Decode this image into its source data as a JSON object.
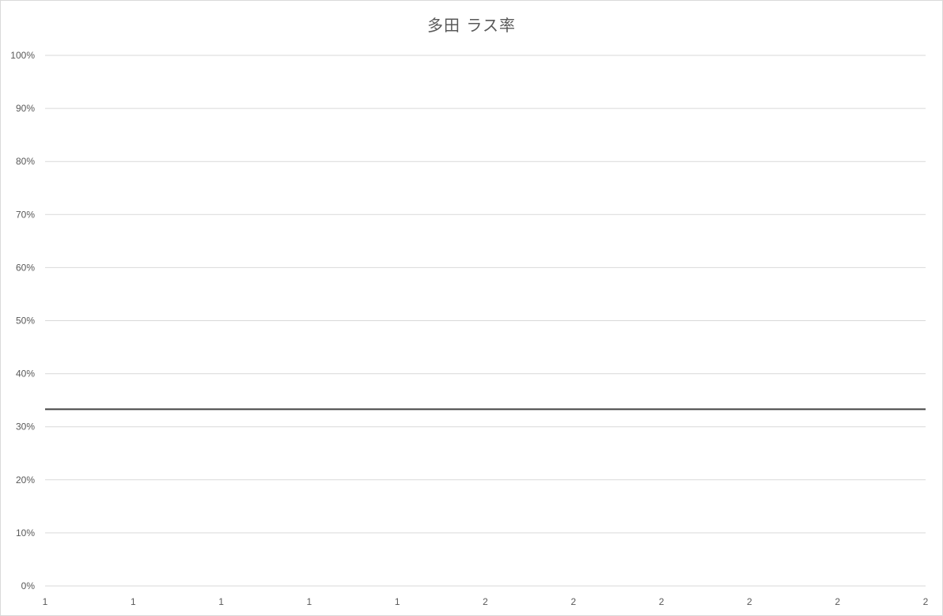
{
  "chart_data": {
    "type": "line",
    "title": "多田 ラス率",
    "xlabel": "",
    "ylabel": "",
    "y_ticks": [
      "0%",
      "10%",
      "20%",
      "30%",
      "40%",
      "50%",
      "60%",
      "70%",
      "80%",
      "90%",
      "100%"
    ],
    "ylim": [
      0,
      1
    ],
    "x_ticks": [
      "1",
      "1",
      "1",
      "1",
      "1",
      "2",
      "2",
      "2",
      "2",
      "2",
      "2"
    ],
    "grid": true,
    "legend": "none",
    "series": [
      {
        "values": [
          0.333,
          0.333
        ],
        "color": "#404040"
      }
    ]
  }
}
